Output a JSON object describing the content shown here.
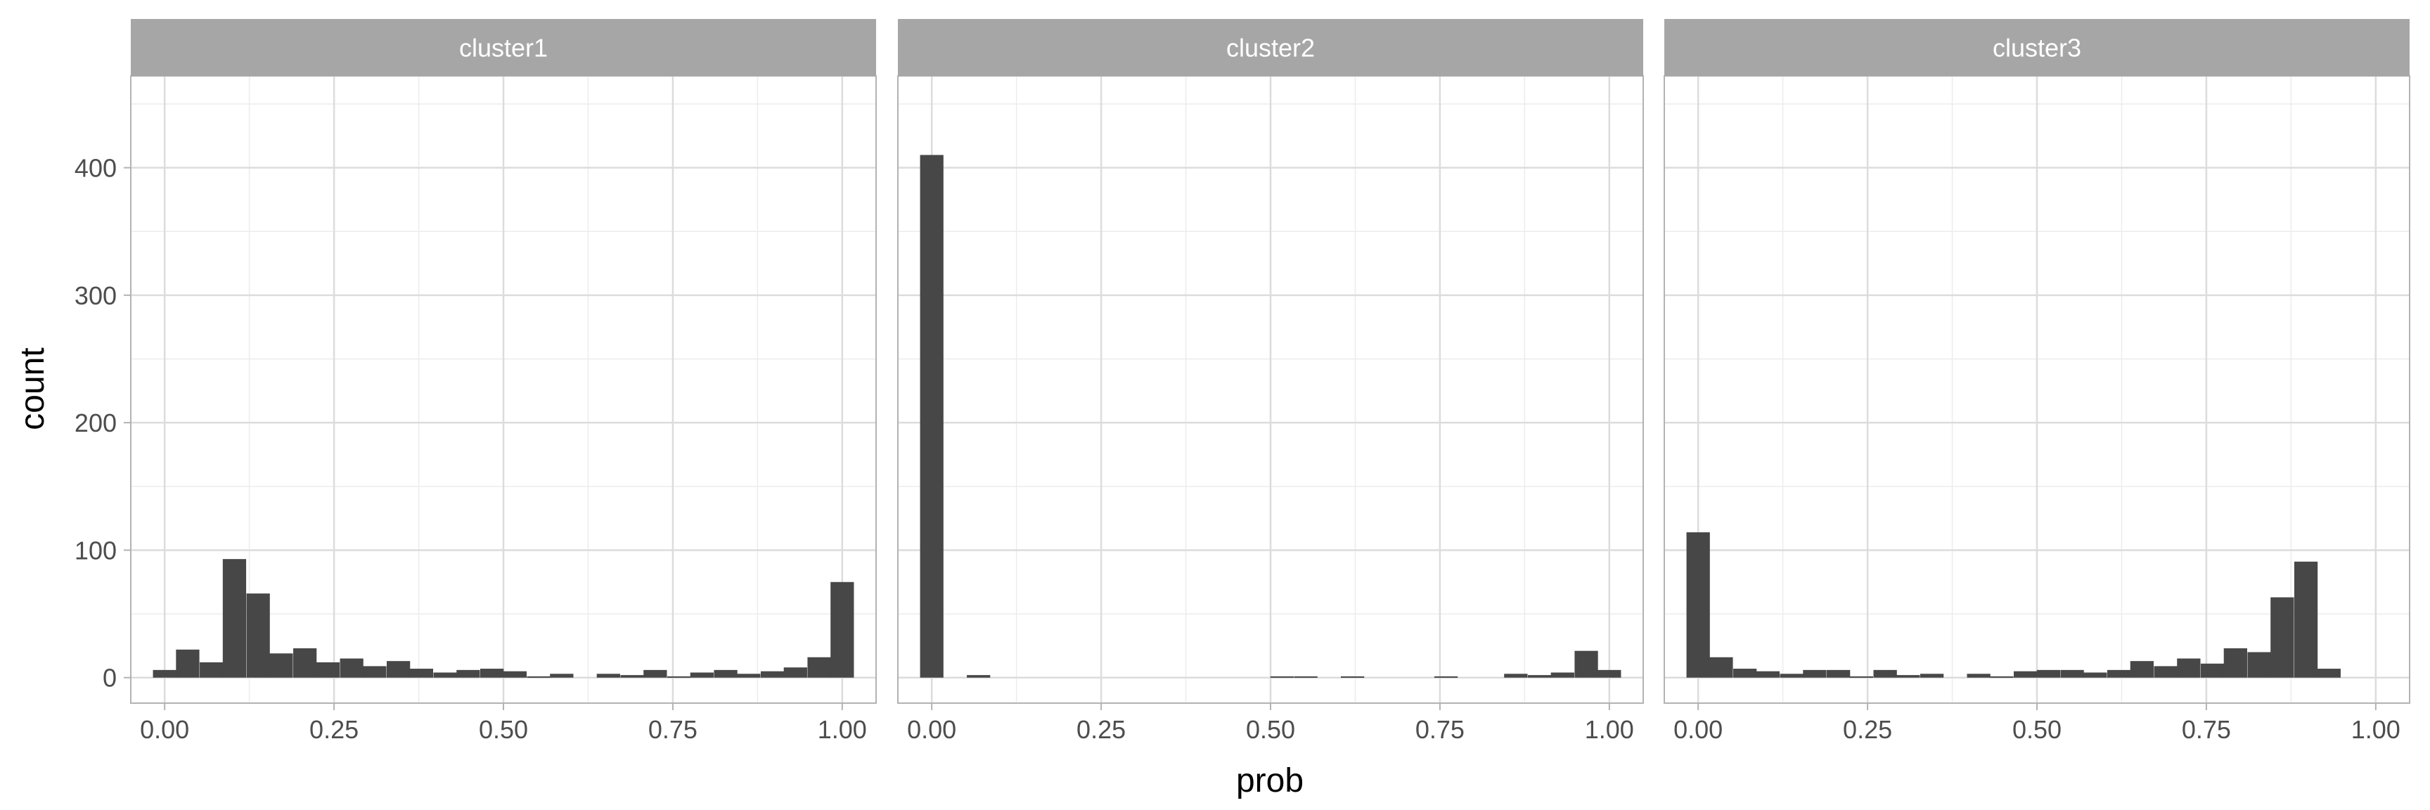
{
  "chart_data": {
    "type": "bar",
    "subtype": "histogram",
    "facet_layout": "1 row x 3 columns",
    "grid": true,
    "theme": "light",
    "xlabel": "prob",
    "ylabel": "count",
    "xlim": [
      -0.05,
      1.05
    ],
    "ylim": [
      -20,
      472
    ],
    "x_ticks": [
      "0.00",
      "0.25",
      "0.50",
      "0.75",
      "1.00"
    ],
    "y_ticks": [
      "0",
      "100",
      "200",
      "300",
      "400"
    ],
    "bin_width": 0.0345,
    "bar_color": "#474747",
    "strip_color": "#a6a6a6",
    "panels": [
      {
        "title": "cluster1",
        "bins": [
          {
            "x": 0.0,
            "count": 6
          },
          {
            "x": 0.034,
            "count": 22
          },
          {
            "x": 0.069,
            "count": 12
          },
          {
            "x": 0.103,
            "count": 93
          },
          {
            "x": 0.138,
            "count": 66
          },
          {
            "x": 0.172,
            "count": 19
          },
          {
            "x": 0.207,
            "count": 23
          },
          {
            "x": 0.241,
            "count": 12
          },
          {
            "x": 0.276,
            "count": 15
          },
          {
            "x": 0.31,
            "count": 9
          },
          {
            "x": 0.345,
            "count": 13
          },
          {
            "x": 0.379,
            "count": 7
          },
          {
            "x": 0.414,
            "count": 4
          },
          {
            "x": 0.448,
            "count": 6
          },
          {
            "x": 0.483,
            "count": 7
          },
          {
            "x": 0.517,
            "count": 5
          },
          {
            "x": 0.552,
            "count": 1
          },
          {
            "x": 0.586,
            "count": 3
          },
          {
            "x": 0.621,
            "count": 0
          },
          {
            "x": 0.655,
            "count": 3
          },
          {
            "x": 0.69,
            "count": 2
          },
          {
            "x": 0.724,
            "count": 6
          },
          {
            "x": 0.759,
            "count": 1
          },
          {
            "x": 0.793,
            "count": 4
          },
          {
            "x": 0.828,
            "count": 6
          },
          {
            "x": 0.862,
            "count": 3
          },
          {
            "x": 0.897,
            "count": 5
          },
          {
            "x": 0.931,
            "count": 8
          },
          {
            "x": 0.966,
            "count": 16
          },
          {
            "x": 1.0,
            "count": 75
          }
        ]
      },
      {
        "title": "cluster2",
        "bins": [
          {
            "x": 0.0,
            "count": 410
          },
          {
            "x": 0.069,
            "count": 2
          },
          {
            "x": 0.517,
            "count": 1
          },
          {
            "x": 0.552,
            "count": 1
          },
          {
            "x": 0.621,
            "count": 1
          },
          {
            "x": 0.759,
            "count": 1
          },
          {
            "x": 0.862,
            "count": 3
          },
          {
            "x": 0.897,
            "count": 2
          },
          {
            "x": 0.931,
            "count": 4
          },
          {
            "x": 0.966,
            "count": 21
          },
          {
            "x": 1.0,
            "count": 6
          }
        ]
      },
      {
        "title": "cluster3",
        "bins": [
          {
            "x": 0.0,
            "count": 114
          },
          {
            "x": 0.034,
            "count": 16
          },
          {
            "x": 0.069,
            "count": 7
          },
          {
            "x": 0.103,
            "count": 5
          },
          {
            "x": 0.138,
            "count": 3
          },
          {
            "x": 0.172,
            "count": 6
          },
          {
            "x": 0.207,
            "count": 6
          },
          {
            "x": 0.241,
            "count": 1
          },
          {
            "x": 0.276,
            "count": 6
          },
          {
            "x": 0.31,
            "count": 2
          },
          {
            "x": 0.345,
            "count": 3
          },
          {
            "x": 0.379,
            "count": 0
          },
          {
            "x": 0.414,
            "count": 3
          },
          {
            "x": 0.448,
            "count": 1
          },
          {
            "x": 0.483,
            "count": 5
          },
          {
            "x": 0.517,
            "count": 6
          },
          {
            "x": 0.552,
            "count": 6
          },
          {
            "x": 0.586,
            "count": 4
          },
          {
            "x": 0.621,
            "count": 6
          },
          {
            "x": 0.655,
            "count": 13
          },
          {
            "x": 0.69,
            "count": 9
          },
          {
            "x": 0.724,
            "count": 15
          },
          {
            "x": 0.759,
            "count": 11
          },
          {
            "x": 0.793,
            "count": 23
          },
          {
            "x": 0.828,
            "count": 20
          },
          {
            "x": 0.862,
            "count": 63
          },
          {
            "x": 0.897,
            "count": 91
          },
          {
            "x": 0.931,
            "count": 7
          }
        ]
      }
    ]
  }
}
